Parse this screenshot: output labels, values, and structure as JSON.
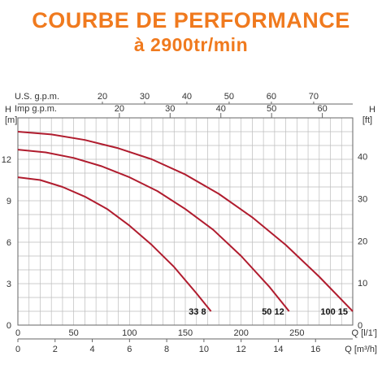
{
  "header": {
    "title": "COURBE DE PERFORMANCE",
    "subtitle": "à 2900tr/min"
  },
  "colors": {
    "title": "#f07a1e",
    "curve": "#b01c2e",
    "grid": "#bdbdbd",
    "axis": "#666666"
  },
  "chart_data": {
    "type": "line",
    "grid": true,
    "x_axis_primary": {
      "label": "Q [l/1']",
      "ticks": [
        0,
        50,
        100,
        150,
        200,
        250
      ],
      "range": [
        0,
        300
      ]
    },
    "x_axis_secondary": {
      "label": "Q [m³/h]",
      "ticks": [
        0,
        2,
        4,
        6,
        8,
        10,
        12,
        14,
        16
      ]
    },
    "x_axis_top_us": {
      "label": "U.S. g.p.m.",
      "ticks": [
        20,
        30,
        40,
        50,
        60,
        70
      ]
    },
    "x_axis_top_imp": {
      "label": "Imp g.p.m.",
      "ticks": [
        20,
        30,
        40,
        50,
        60
      ]
    },
    "y_axis_left": {
      "label": "H",
      "unit": "[m]",
      "ticks": [
        0,
        3,
        6,
        9,
        12
      ],
      "range": [
        0,
        15
      ]
    },
    "y_axis_right": {
      "label": "H",
      "unit": "[ft]",
      "ticks": [
        0,
        10,
        20,
        30,
        40
      ]
    },
    "series": [
      {
        "name": "33 8",
        "x": [
          0,
          20,
          40,
          60,
          80,
          100,
          120,
          140,
          160,
          173
        ],
        "y": [
          10.7,
          10.5,
          10.0,
          9.3,
          8.4,
          7.2,
          5.8,
          4.2,
          2.3,
          1.0
        ]
      },
      {
        "name": "50 12",
        "x": [
          0,
          25,
          50,
          75,
          100,
          125,
          150,
          175,
          200,
          225,
          243
        ],
        "y": [
          12.7,
          12.5,
          12.1,
          11.5,
          10.7,
          9.7,
          8.4,
          6.9,
          5.0,
          2.8,
          1.0
        ]
      },
      {
        "name": "100 15",
        "x": [
          0,
          30,
          60,
          90,
          120,
          150,
          180,
          210,
          240,
          270,
          300
        ],
        "y": [
          14.0,
          13.8,
          13.4,
          12.8,
          12.0,
          10.9,
          9.5,
          7.8,
          5.8,
          3.5,
          1.0
        ]
      }
    ]
  }
}
